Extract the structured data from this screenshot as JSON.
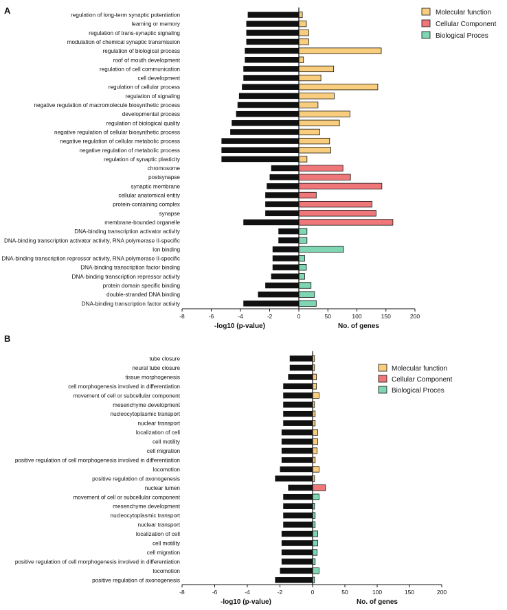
{
  "colors": {
    "pvalue_bar": "#111111",
    "molecular_function": "#F9CD7E",
    "cellular_component": "#EF7779",
    "biological_process": "#7ED6B3"
  },
  "legend": [
    {
      "key": "MF",
      "label": "Molecular function",
      "color": "#F9CD7E"
    },
    {
      "key": "CC",
      "label": "Cellular Component",
      "color": "#EF7779"
    },
    {
      "key": "BP",
      "label": "Biological Proces",
      "color": "#7ED6B3"
    }
  ],
  "chart_data": [
    {
      "panel": "A",
      "type": "bar",
      "orientation": "horizontal",
      "xlabel_left": "-log10 (p-value)",
      "xlabel_right": "No. of genes",
      "left_ticks": [
        "-8",
        "-6",
        "-4",
        "-2",
        "0"
      ],
      "right_ticks": [
        "50",
        "100",
        "150",
        "200"
      ],
      "categories": [
        "regulation of long-term synaptic potentiation",
        "learning or memory",
        "regulation of trans-synaptic signaling",
        "modulation of chemical synaptic transmission",
        "regulation of biological process",
        "roof of mouth development",
        "regulation of cell communication",
        "cell development",
        "regulation of cellular process",
        "regulation of signaling",
        "negative regulation of macromolecule biosynthetic process",
        "developmental process",
        "regulation of biological quality",
        "negative regulation of cellular biosynthetic process",
        "negative regulation of cellular metabolic process",
        "negative regulation of metabolic process",
        "regulation of synaptic plasticity",
        "chromosome",
        "postsynapse",
        "synaptic membrane",
        "cellular anatomical entity",
        "protein-containing complex",
        "synapse",
        "membrane-bounded organelle",
        "DNA-binding transcription activator activity",
        "DNA-binding transcription activator activity, RNA polymerase II-specific",
        "Ion binding",
        "DNA-binding transcription repressor activity, RNA polymerase II-specific",
        "DNA-binding transcription factor binding",
        "DNA-binding transcription repressor activity",
        "protein domain specific binding",
        "double-stranded DNA binding",
        "DNA-binding transcription factor activity"
      ],
      "neg_log10_pvalue": [
        3.5,
        3.6,
        3.6,
        3.6,
        3.7,
        3.7,
        3.8,
        3.8,
        3.9,
        4.1,
        4.2,
        4.3,
        4.6,
        4.7,
        5.3,
        5.3,
        5.3,
        1.9,
        2.0,
        2.2,
        2.3,
        2.3,
        2.3,
        3.8,
        1.4,
        1.4,
        1.8,
        1.8,
        1.8,
        1.9,
        2.3,
        2.8,
        3.8
      ],
      "no_of_genes": [
        6,
        13,
        17,
        17,
        142,
        8,
        60,
        38,
        136,
        61,
        33,
        88,
        70,
        36,
        53,
        55,
        14,
        76,
        89,
        143,
        30,
        126,
        133,
        162,
        14,
        14,
        77,
        10,
        13,
        10,
        21,
        27,
        30
      ],
      "groups": [
        "MF",
        "MF",
        "MF",
        "MF",
        "MF",
        "MF",
        "MF",
        "MF",
        "MF",
        "MF",
        "MF",
        "MF",
        "MF",
        "MF",
        "MF",
        "MF",
        "MF",
        "CC",
        "CC",
        "CC",
        "CC",
        "CC",
        "CC",
        "CC",
        "BP",
        "BP",
        "BP",
        "BP",
        "BP",
        "BP",
        "BP",
        "BP",
        "BP"
      ],
      "xlim_left": [
        -8,
        0
      ],
      "xlim_right": [
        0,
        200
      ]
    },
    {
      "panel": "B",
      "type": "bar",
      "orientation": "horizontal",
      "xlabel_left": "-log10 (p-value)",
      "xlabel_right": "No. of genes",
      "left_ticks": [
        "-8",
        "-6",
        "-4",
        "-2",
        "0"
      ],
      "right_ticks": [
        "50",
        "100",
        "150",
        "200"
      ],
      "categories": [
        "tube closure",
        "neural tube closure",
        "tissue morphogenesis",
        "cell morphogenesis involved in differentiation",
        "movement of cell or subcellular component",
        "mesenchyme development",
        "nucleocytoplasmic transport",
        "nuclear transport",
        "localization of cell",
        "cell motility",
        "cell migration",
        "positive regulation of cell morphogenesis involved in differentiation",
        "locomotion",
        "positive regulation of axonogenesis",
        "nuclear lumen",
        "movement of cell or subcellular component",
        "mesenchyme development",
        "nucleocytoplasmic transport",
        "nuclear transport",
        "localization of cell",
        "cell motility",
        "cell migration",
        "positive regulation of cell morphogenesis involved in differentiation",
        "locomotion",
        "positive regulation of axonogenesis"
      ],
      "neg_log10_pvalue": [
        1.4,
        1.4,
        1.5,
        1.8,
        1.8,
        1.8,
        1.8,
        1.8,
        1.9,
        1.9,
        1.9,
        1.9,
        2.0,
        2.3,
        1.5,
        1.8,
        1.8,
        1.8,
        1.8,
        1.9,
        1.9,
        1.9,
        1.9,
        2.0,
        2.3
      ],
      "no_of_genes": [
        3,
        3,
        6,
        6,
        10,
        3,
        4,
        4,
        8,
        8,
        7,
        4,
        10,
        3,
        20,
        10,
        3,
        4,
        4,
        8,
        8,
        7,
        4,
        10,
        3
      ],
      "groups": [
        "MF",
        "MF",
        "MF",
        "MF",
        "MF",
        "MF",
        "MF",
        "MF",
        "MF",
        "MF",
        "MF",
        "MF",
        "MF",
        "MF",
        "CC",
        "BP",
        "BP",
        "BP",
        "BP",
        "BP",
        "BP",
        "BP",
        "BP",
        "BP",
        "BP"
      ],
      "xlim_left": [
        -8,
        0
      ],
      "xlim_right": [
        0,
        200
      ]
    }
  ]
}
